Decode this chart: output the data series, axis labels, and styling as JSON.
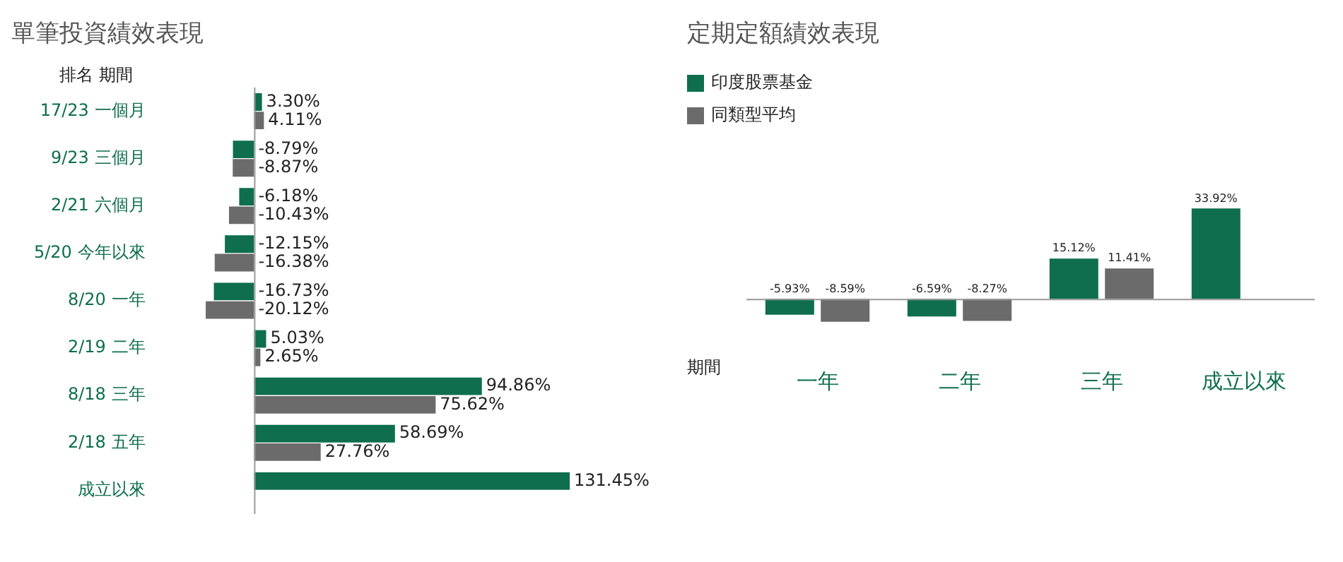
{
  "chart_data": [
    {
      "type": "bar",
      "title": "單筆投資績效表現",
      "orientation": "horizontal",
      "ylabel": "排名 期間",
      "data_labels": true,
      "legend": false,
      "categories": [
        "17/23 一個月",
        "9/23 三個月",
        "2/21 六個月",
        "5/20 今年以來",
        "8/20 一年",
        "2/19 二年",
        "8/18 三年",
        "2/18 五年",
        "成立以來"
      ],
      "series": [
        {
          "color": "#0e6e4e",
          "values": [
            3.3,
            -8.79,
            -6.18,
            -12.15,
            -16.73,
            5.03,
            94.86,
            58.69,
            131.45
          ],
          "value_labels": [
            "3.30%",
            "-8.79%",
            "-6.18%",
            "-12.15%",
            "-16.73%",
            "5.03%",
            "94.86%",
            "58.69%",
            "131.45%"
          ]
        },
        {
          "color": "#6b6b6b",
          "values": [
            4.11,
            -8.87,
            -10.43,
            -16.38,
            -20.12,
            2.65,
            75.62,
            27.76,
            null
          ],
          "value_labels": [
            "4.11%",
            "-8.87%",
            "-10.43%",
            "-16.38%",
            "-20.12%",
            "2.65%",
            "75.62%",
            "27.76%",
            null
          ]
        }
      ]
    },
    {
      "type": "bar",
      "title": "定期定額績效表現",
      "xlabel": "期間",
      "data_labels": true,
      "legend": "top left",
      "categories": [
        "一年",
        "二年",
        "三年",
        "成立以來"
      ],
      "series": [
        {
          "name": "印度股票基金",
          "color": "#0e6e4e",
          "values": [
            -5.93,
            -6.59,
            15.12,
            33.92
          ],
          "value_labels": [
            "-5.93%",
            "-6.59%",
            "15.12%",
            "33.92%"
          ]
        },
        {
          "name": "同類型平均",
          "color": "#6b6b6b",
          "values": [
            -8.59,
            -8.27,
            11.41,
            null
          ],
          "value_labels": [
            "-8.59%",
            "-8.27%",
            "11.41%",
            null
          ]
        }
      ]
    }
  ]
}
